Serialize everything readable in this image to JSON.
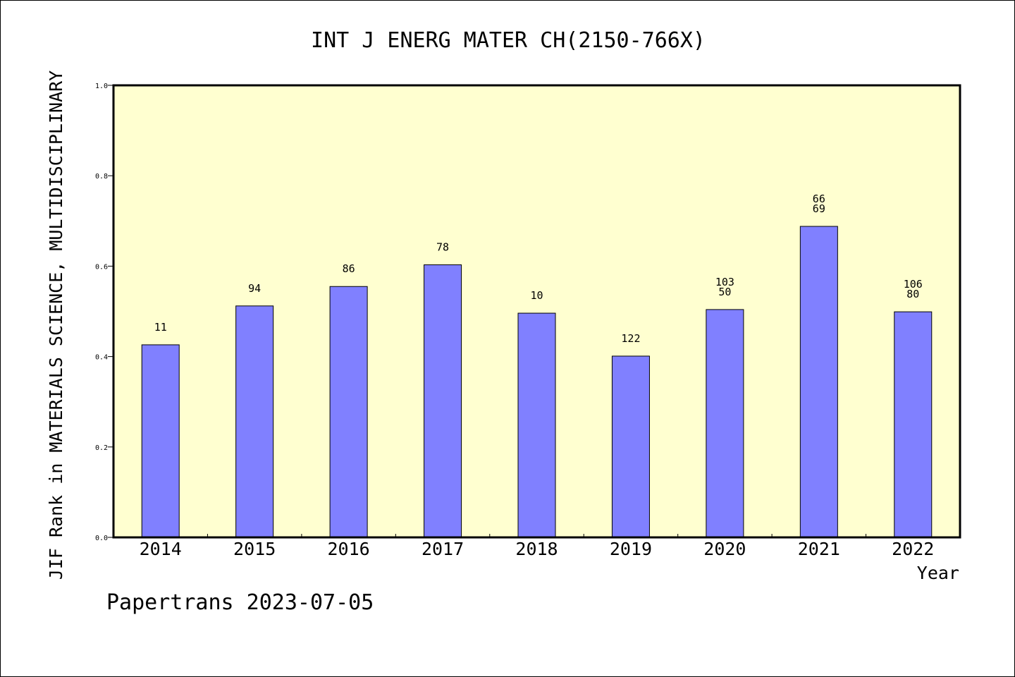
{
  "chart_data": {
    "type": "bar",
    "title": "INT J ENERG MATER CH(2150-766X)",
    "ylabel": "JIF Rank in MATERIALS SCIENCE, MULTIDISCIPLINARY",
    "xlabel": "Year",
    "ylim": [
      0,
      1.0
    ],
    "yticks": [
      "0.0",
      "0.2",
      "0.4",
      "0.6",
      "0.8",
      "1.0"
    ],
    "categories": [
      "2014",
      "2015",
      "2016",
      "2017",
      "2018",
      "2019",
      "2020",
      "2021",
      "2022"
    ],
    "values": [
      0.426,
      0.512,
      0.555,
      0.603,
      0.496,
      0.401,
      0.504,
      0.688,
      0.499
    ],
    "bar_labels": [
      [
        "11"
      ],
      [
        "94"
      ],
      [
        "86"
      ],
      [
        "78"
      ],
      [
        "10"
      ],
      [
        "122"
      ],
      [
        "103",
        "50"
      ],
      [
        "66",
        "69"
      ],
      [
        "106",
        "80"
      ]
    ],
    "grid": false,
    "colors": {
      "bar": "#8080ff",
      "plot_background": "#ffffd0",
      "axis": "#000000"
    }
  },
  "footer": {
    "text": "Papertrans 2023-07-05"
  }
}
